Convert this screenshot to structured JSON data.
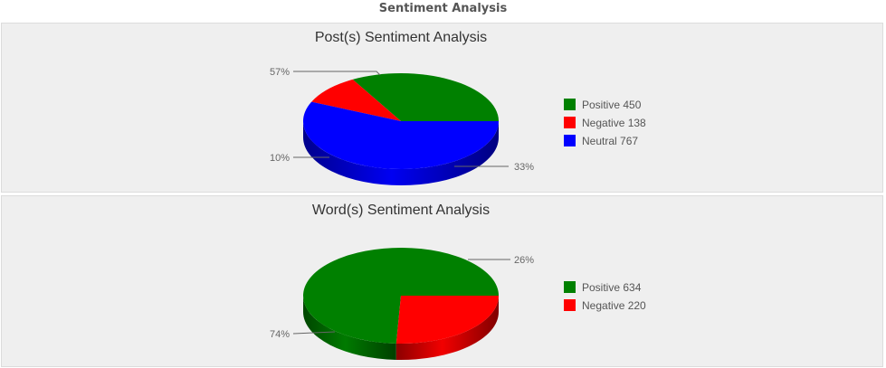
{
  "page_title": "Sentiment Analysis",
  "colors": {
    "positive": "#008000",
    "negative": "#ff0000",
    "neutral": "#0000ff"
  },
  "chart_data": [
    {
      "type": "pie",
      "title": "Post(s) Sentiment Analysis",
      "categories": [
        "Positive",
        "Negative",
        "Neutral"
      ],
      "values": [
        450,
        138,
        767
      ],
      "percent_labels": [
        "33%",
        "10%",
        "57%"
      ],
      "legend": [
        "Positive 450",
        "Negative 138",
        "Neutral 767"
      ],
      "legend_placement": "right",
      "three_d": true
    },
    {
      "type": "pie",
      "title": "Word(s) Sentiment Analysis",
      "categories": [
        "Positive",
        "Negative"
      ],
      "values": [
        634,
        220
      ],
      "percent_labels": [
        "74%",
        "26%"
      ],
      "legend": [
        "Positive 634",
        "Negative 220"
      ],
      "legend_placement": "right",
      "three_d": true
    }
  ]
}
